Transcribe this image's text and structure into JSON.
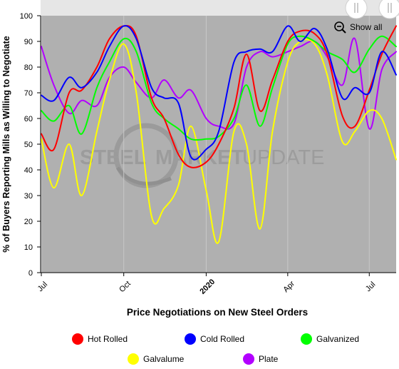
{
  "chart_data": {
    "type": "line",
    "title": "",
    "xlabel": "Price Negotiations on New Steel Orders",
    "ylabel": "% of Buyers Reporting Mills as Willing to Negotiate",
    "ylim": [
      0,
      100
    ],
    "y_ticks": [
      0,
      10,
      20,
      30,
      40,
      50,
      60,
      70,
      80,
      90,
      100
    ],
    "x_range": [
      "2019-07-01",
      "2020-07-31"
    ],
    "x_ticks": [
      {
        "date": "2019-07-01",
        "label": "Jul",
        "bold": false
      },
      {
        "date": "2019-10-01",
        "label": "Oct",
        "bold": false
      },
      {
        "date": "2020-01-01",
        "label": "2020",
        "bold": true
      },
      {
        "date": "2020-04-01",
        "label": "Apr",
        "bold": false
      },
      {
        "date": "2020-07-01",
        "label": "Jul",
        "bold": false
      }
    ],
    "grid": "vertical",
    "legend_position": "bottom",
    "series": [
      {
        "name": "Hot Rolled",
        "color": "#ff0000",
        "x": [
          "2019-07-01",
          "2019-07-15",
          "2019-08-01",
          "2019-08-15",
          "2019-09-01",
          "2019-09-15",
          "2019-10-01",
          "2019-10-15",
          "2019-11-01",
          "2019-11-15",
          "2019-12-01",
          "2019-12-15",
          "2020-01-01",
          "2020-01-15",
          "2020-02-01",
          "2020-02-15",
          "2020-03-01",
          "2020-03-15",
          "2020-04-01",
          "2020-04-15",
          "2020-05-01",
          "2020-05-15",
          "2020-06-01",
          "2020-06-15",
          "2020-07-01",
          "2020-07-15",
          "2020-07-31"
        ],
        "values": [
          54,
          48,
          70,
          71,
          80,
          91,
          96,
          92,
          68,
          60,
          46,
          41,
          43,
          50,
          64,
          85,
          63,
          75,
          90,
          94,
          93,
          85,
          61,
          57,
          71,
          85,
          96
        ]
      },
      {
        "name": "Cold Rolled",
        "color": "#0000ff",
        "x": [
          "2019-07-01",
          "2019-07-15",
          "2019-08-01",
          "2019-08-15",
          "2019-09-01",
          "2019-09-15",
          "2019-10-01",
          "2019-10-15",
          "2019-11-01",
          "2019-11-15",
          "2019-12-01",
          "2019-12-15",
          "2020-01-01",
          "2020-01-15",
          "2020-02-01",
          "2020-02-15",
          "2020-03-01",
          "2020-03-15",
          "2020-04-01",
          "2020-04-15",
          "2020-05-01",
          "2020-05-15",
          "2020-06-01",
          "2020-06-15",
          "2020-07-01",
          "2020-07-15",
          "2020-07-31"
        ],
        "values": [
          69,
          67,
          76,
          72,
          78,
          88,
          96,
          91,
          72,
          68,
          66,
          45,
          48,
          55,
          82,
          86,
          87,
          86,
          96,
          90,
          95,
          87,
          68,
          72,
          70,
          86,
          77
        ]
      },
      {
        "name": "Galvanized",
        "color": "#00ff00",
        "x": [
          "2019-07-01",
          "2019-07-15",
          "2019-08-01",
          "2019-08-15",
          "2019-09-01",
          "2019-09-15",
          "2019-10-01",
          "2019-10-15",
          "2019-11-01",
          "2019-11-15",
          "2019-12-01",
          "2019-12-15",
          "2020-01-01",
          "2020-01-15",
          "2020-02-01",
          "2020-02-15",
          "2020-03-01",
          "2020-03-15",
          "2020-04-01",
          "2020-04-15",
          "2020-05-01",
          "2020-05-15",
          "2020-06-01",
          "2020-06-15",
          "2020-07-01",
          "2020-07-15",
          "2020-07-31"
        ],
        "values": [
          63,
          59,
          65,
          54,
          72,
          82,
          91,
          86,
          66,
          60,
          56,
          52,
          52,
          53,
          60,
          73,
          57,
          72,
          89,
          92,
          90,
          86,
          83,
          78,
          87,
          92,
          88
        ]
      },
      {
        "name": "Galvalume",
        "color": "#ffff00",
        "x": [
          "2019-07-01",
          "2019-07-15",
          "2019-08-01",
          "2019-08-15",
          "2019-09-01",
          "2019-09-15",
          "2019-10-01",
          "2019-10-15",
          "2019-11-01",
          "2019-11-15",
          "2019-12-01",
          "2019-12-15",
          "2020-01-01",
          "2020-01-15",
          "2020-02-01",
          "2020-02-15",
          "2020-03-01",
          "2020-03-15",
          "2020-04-01",
          "2020-04-15",
          "2020-05-01",
          "2020-05-15",
          "2020-06-01",
          "2020-06-15",
          "2020-07-01",
          "2020-07-15",
          "2020-07-31"
        ],
        "values": [
          52,
          33,
          50,
          30,
          55,
          75,
          89,
          70,
          22,
          25,
          34,
          57,
          32,
          12,
          55,
          50,
          17,
          55,
          82,
          90,
          89,
          77,
          51,
          55,
          63,
          60,
          44
        ]
      },
      {
        "name": "Plate",
        "color": "#b200ff",
        "x": [
          "2019-07-01",
          "2019-07-15",
          "2019-08-01",
          "2019-08-15",
          "2019-09-01",
          "2019-09-15",
          "2019-10-01",
          "2019-10-15",
          "2019-11-01",
          "2019-11-15",
          "2019-12-01",
          "2019-12-15",
          "2020-01-01",
          "2020-01-15",
          "2020-02-01",
          "2020-02-15",
          "2020-03-01",
          "2020-03-15",
          "2020-04-01",
          "2020-04-15",
          "2020-05-01",
          "2020-05-15",
          "2020-06-01",
          "2020-06-15",
          "2020-07-01",
          "2020-07-15",
          "2020-07-31"
        ],
        "values": [
          88,
          73,
          62,
          67,
          65,
          76,
          80,
          74,
          68,
          75,
          68,
          71,
          60,
          57,
          58,
          80,
          86,
          84,
          86,
          88,
          90,
          84,
          73,
          91,
          56,
          79,
          86
        ]
      }
    ]
  },
  "controls": {
    "show_all_label": "Show all",
    "zoom_icon": "zoom-out-icon",
    "navigator_handle_icon": "scroll-handle-icon"
  },
  "watermark": {
    "text": "STEEL MARKET UPDATE",
    "part1": "STEEL",
    "part2": "MARKET",
    "part3": "UPDATE"
  },
  "colors": {
    "plot_background": "#b0b0b0",
    "grid": "#c8c8c8",
    "navigator_background": "#e6e6e6",
    "axis_text": "#000000"
  }
}
